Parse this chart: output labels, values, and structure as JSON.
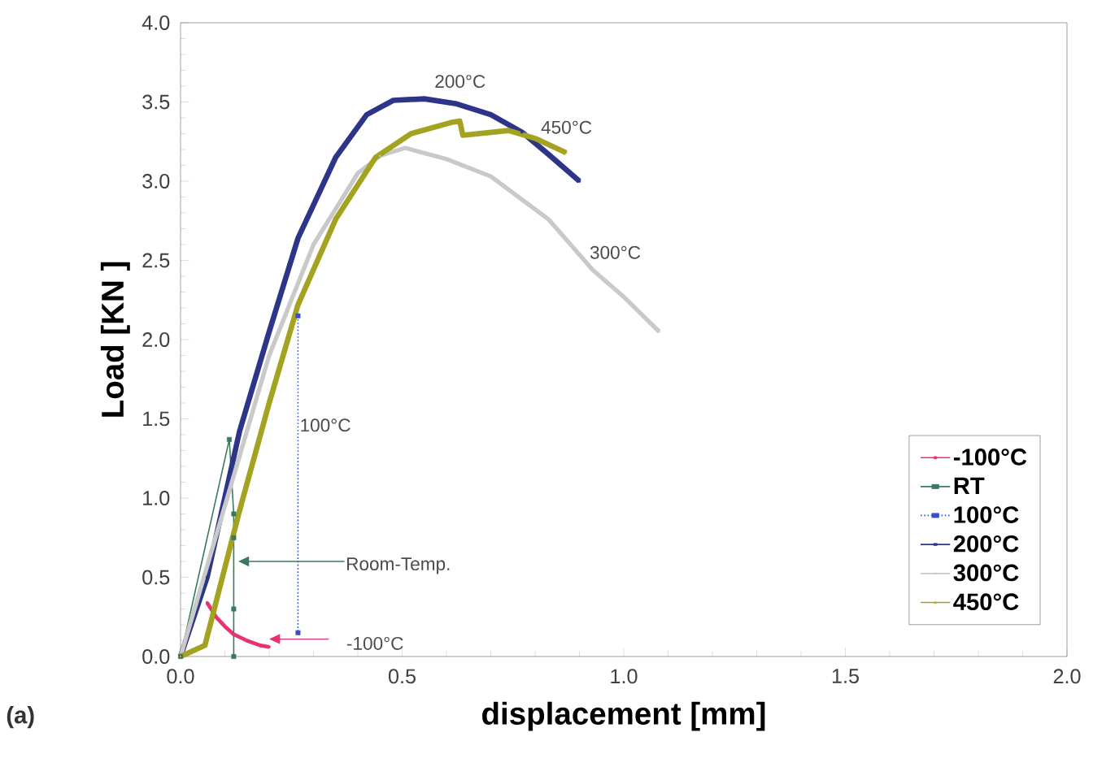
{
  "chart_data": {
    "type": "line",
    "xlabel": "displacement [mm]",
    "ylabel": "Load [KN ]",
    "xlim": [
      0,
      2
    ],
    "ylim": [
      0,
      4
    ],
    "xticks": [
      {
        "value": 0,
        "label": "0.0"
      },
      {
        "value": 0.5,
        "label": "0.5"
      },
      {
        "value": 1,
        "label": "1.0"
      },
      {
        "value": 1.5,
        "label": "1.5"
      },
      {
        "value": 2,
        "label": "2.0"
      }
    ],
    "yticks": [
      {
        "value": 0,
        "label": "0.0"
      },
      {
        "value": 0.5,
        "label": "0.5"
      },
      {
        "value": 1,
        "label": "1.0"
      },
      {
        "value": 1.5,
        "label": "1.5"
      },
      {
        "value": 2,
        "label": "2.0"
      },
      {
        "value": 2.5,
        "label": "2.5"
      },
      {
        "value": 3,
        "label": "3.0"
      },
      {
        "value": 3.5,
        "label": "3.5"
      },
      {
        "value": 4,
        "label": "4.0"
      }
    ],
    "grid": false,
    "legend": "bottom right",
    "series": [
      {
        "name": "-100°C",
        "color": "#e8336e",
        "marker": "circle",
        "line_style": "solid",
        "x": [
          0.06,
          0.08,
          0.1,
          0.12,
          0.15,
          0.18,
          0.2
        ],
        "values": [
          0.34,
          0.25,
          0.19,
          0.14,
          0.1,
          0.07,
          0.06
        ]
      },
      {
        "name": "RT",
        "color": "#3a7a5c",
        "marker": "square",
        "line_style": "solid",
        "x": [
          0,
          0.11,
          0.12,
          0.12,
          0.12,
          0.12
        ],
        "values": [
          0,
          1.37,
          0.9,
          0.75,
          0.3,
          0
        ]
      },
      {
        "name": "100°C",
        "color": "#3a4fd0",
        "marker": "square",
        "line_style": "dotted",
        "x": [
          0.265,
          0.265
        ],
        "values": [
          2.15,
          0.15
        ]
      },
      {
        "name": "200°C",
        "color": "#2d3589",
        "marker": "square",
        "line_style": "solid",
        "x": [
          0,
          0.06,
          0.133,
          0.2,
          0.265,
          0.35,
          0.42,
          0.48,
          0.55,
          0.62,
          0.7,
          0.77,
          0.83,
          0.9
        ],
        "values": [
          0,
          0.5,
          1.42,
          2.05,
          2.64,
          3.15,
          3.42,
          3.51,
          3.52,
          3.49,
          3.42,
          3.31,
          3.17,
          3.0
        ]
      },
      {
        "name": "300°C",
        "color": "#c9c9c9",
        "marker": "triangle",
        "line_style": "solid",
        "x": [
          0,
          0.1,
          0.2,
          0.3,
          0.4,
          0.45,
          0.507,
          0.6,
          0.7,
          0.83,
          0.93,
          1.0,
          1.08
        ],
        "values": [
          0,
          0.95,
          1.9,
          2.6,
          3.05,
          3.16,
          3.21,
          3.14,
          3.03,
          2.76,
          2.44,
          2.27,
          2.05
        ]
      },
      {
        "name": "450°C",
        "color": "#a3a321",
        "marker": "triangle",
        "line_style": "solid",
        "x": [
          0,
          0.055,
          0.133,
          0.2,
          0.265,
          0.35,
          0.44,
          0.52,
          0.61,
          0.63,
          0.637,
          0.74,
          0.8,
          0.87
        ],
        "values": [
          0,
          0.07,
          0.92,
          1.6,
          2.22,
          2.76,
          3.15,
          3.3,
          3.37,
          3.38,
          3.29,
          3.32,
          3.27,
          3.18
        ]
      }
    ],
    "annotations": [
      "200°C",
      "450°C",
      "300°C",
      "100°C",
      "Room-Temp.",
      "-100°C",
      "(a)"
    ]
  }
}
